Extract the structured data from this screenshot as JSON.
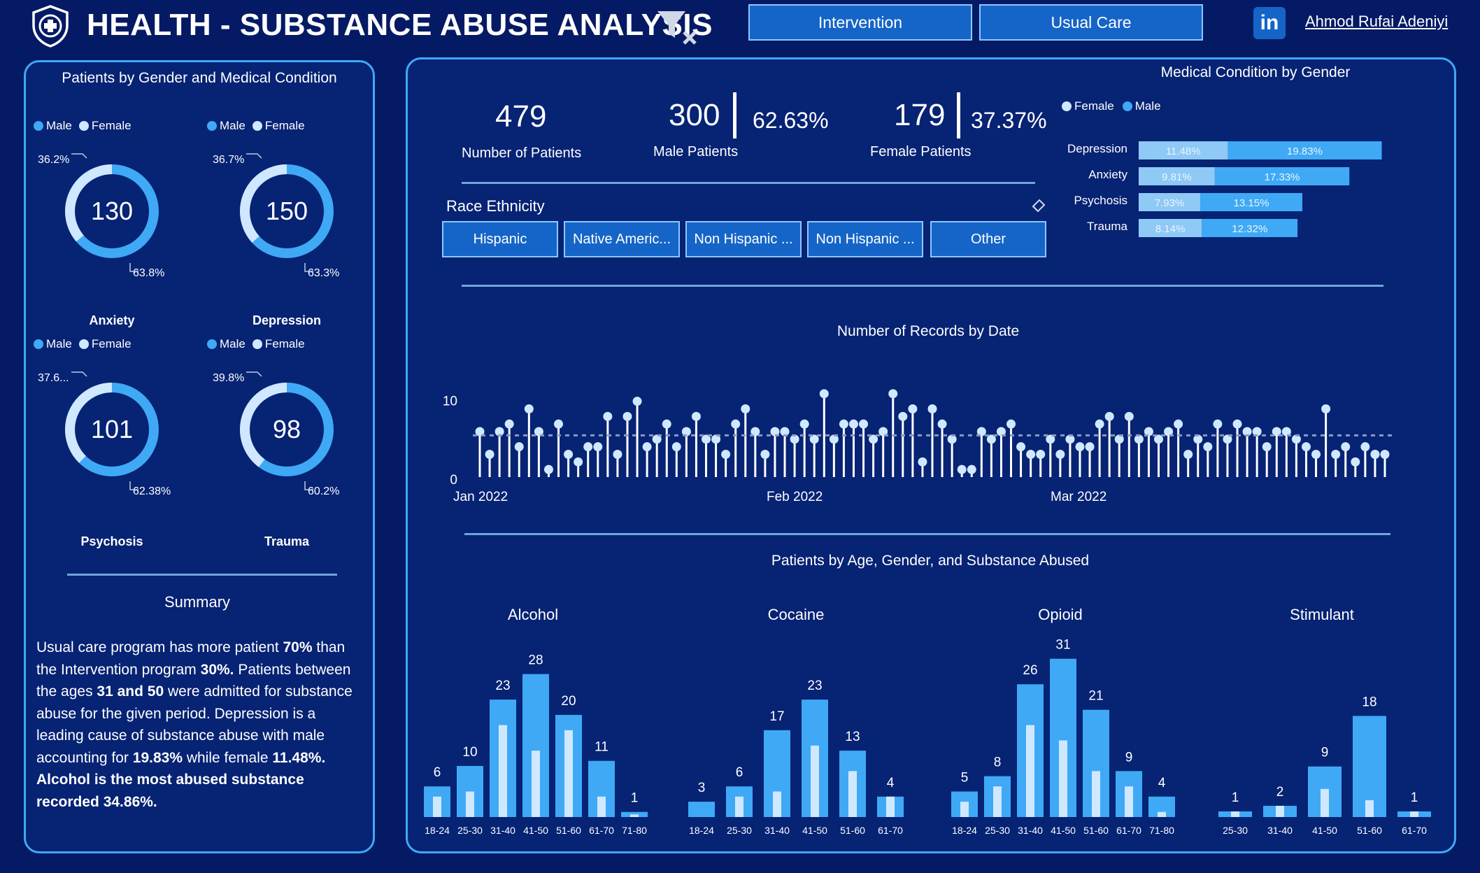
{
  "header": {
    "title": "HEALTH - SUBSTANCE ABUSE ANALYSIS",
    "intervention_label": "Intervention",
    "usual_care_label": "Usual Care",
    "linkedin_label": "in",
    "author": "Ahmod Rufai Adeniyi"
  },
  "colors": {
    "background": "#051a64",
    "panel": "#062374",
    "border": "#3fa9f5",
    "male": "#3fa9f5",
    "female": "#cfe8ff",
    "button": "#1565c8"
  },
  "left": {
    "title": "Patients by Gender and Medical Condition",
    "legend_male": "Male",
    "legend_female": "Female",
    "summary_title": "Summary"
  },
  "summary": {
    "t1": "Usual care program has more patient ",
    "b1": "70%",
    "t2": " than the Intervention program ",
    "b2": "30%.",
    "t3": " Patients between the ages ",
    "b3": "31 and 50",
    "t4": " were admitted for substance abuse for the given period. Depression is a leading cause of substance abuse with male accounting for ",
    "b4": "19.83%",
    "t5": " while female ",
    "b5": "11.48%. Alcohol is the most abused substance recorded 34.86%."
  },
  "kpis": {
    "patients_value": "479",
    "patients_label": "Number of Patients",
    "male_value": "300",
    "male_pct": "62.63%",
    "male_label": "Male Patients",
    "female_value": "179",
    "female_pct": "37.37%",
    "female_label": "Female Patients"
  },
  "race": {
    "title": "Race Ethnicity",
    "options": [
      "Hispanic",
      "Native Americ...",
      "Non Hispanic ...",
      "Non Hispanic ...",
      "Other"
    ]
  },
  "chart_data": [
    {
      "type": "pie",
      "title": "Patients by Gender and Medical Condition",
      "charts": [
        {
          "name": "Anxiety",
          "total": "130",
          "female_pct": 36.2,
          "male_pct": 63.8,
          "female_label": "36.2%",
          "male_label": "63.8%"
        },
        {
          "name": "Depression",
          "total": "150",
          "female_pct": 36.7,
          "male_pct": 63.3,
          "female_label": "36.7%",
          "male_label": "63.3%"
        },
        {
          "name": "Psychosis",
          "total": "101",
          "female_pct": 37.62,
          "male_pct": 62.38,
          "female_label": "37.6...",
          "male_label": "62.38%"
        },
        {
          "name": "Trauma",
          "total": "98",
          "female_pct": 39.8,
          "male_pct": 60.2,
          "female_label": "39.8%",
          "male_label": "60.2%"
        }
      ],
      "legend": [
        "Male",
        "Female"
      ]
    },
    {
      "type": "bar",
      "title": "Medical Condition by Gender",
      "categories": [
        "Depression",
        "Anxiety",
        "Psychosis",
        "Trauma"
      ],
      "series": [
        {
          "name": "Female",
          "values": [
            11.48,
            9.81,
            7.93,
            8.14
          ],
          "labels": [
            "11.48%",
            "9.81%",
            "7.93%",
            "8.14%"
          ]
        },
        {
          "name": "Male",
          "values": [
            19.83,
            17.33,
            13.15,
            12.32
          ],
          "labels": [
            "19.83%",
            "17.33%",
            "13.15%",
            "12.32%"
          ]
        }
      ]
    },
    {
      "type": "scatter",
      "title": "Number of Records by Date",
      "x_tick_labels": [
        "Jan 2022",
        "Feb 2022",
        "Mar 2022"
      ],
      "y_tick_labels": [
        "0",
        "10"
      ],
      "ylim": [
        0,
        12
      ],
      "average": 5.5,
      "values": [
        6,
        3,
        6,
        7,
        4,
        9,
        6,
        1,
        7,
        3,
        2,
        4,
        4,
        8,
        3,
        8,
        10,
        4,
        5,
        7,
        4,
        6,
        8,
        5,
        5,
        3,
        7,
        9,
        6,
        3,
        6,
        6,
        5,
        7,
        5,
        11,
        5,
        7,
        7,
        7,
        5,
        6,
        11,
        8,
        9,
        2,
        9,
        7,
        5,
        1,
        1,
        6,
        5,
        6,
        7,
        4,
        3,
        3,
        5,
        3,
        5,
        4,
        4,
        7,
        8,
        5,
        8,
        5,
        6,
        5,
        6,
        7,
        3,
        5,
        4,
        7,
        5,
        7,
        6,
        6,
        4,
        6,
        6,
        5,
        4,
        3,
        9,
        3,
        4,
        2,
        4,
        3,
        3
      ],
      "grid": false
    },
    {
      "type": "bar",
      "title": "Patients by Age, Gender, and Substance Abused",
      "panels": [
        {
          "name": "Alcohol",
          "categories": [
            "18-24",
            "25-30",
            "31-40",
            "41-50",
            "51-60",
            "61-70",
            "71-80"
          ],
          "values": [
            6,
            10,
            23,
            28,
            20,
            11,
            1
          ],
          "female": [
            4,
            5,
            18,
            13,
            17,
            4,
            0.5
          ]
        },
        {
          "name": "Cocaine",
          "categories": [
            "18-24",
            "25-30",
            "31-40",
            "41-50",
            "51-60",
            "61-70"
          ],
          "values": [
            3,
            6,
            17,
            23,
            13,
            4
          ],
          "female": [
            0,
            4,
            5,
            14,
            9,
            4
          ]
        },
        {
          "name": "Opioid",
          "categories": [
            "18-24",
            "25-30",
            "31-40",
            "41-50",
            "51-60",
            "61-70",
            "71-80"
          ],
          "values": [
            5,
            8,
            26,
            31,
            21,
            9,
            4
          ],
          "female": [
            3,
            6,
            18,
            15,
            9,
            6,
            1
          ]
        },
        {
          "name": "Stimulant",
          "categories": [
            "25-30",
            "31-40",
            "41-50",
            "51-60",
            "61-70"
          ],
          "values": [
            1,
            2,
            9,
            18,
            1
          ],
          "female": [
            1,
            2,
            5,
            3,
            1
          ]
        }
      ]
    }
  ]
}
